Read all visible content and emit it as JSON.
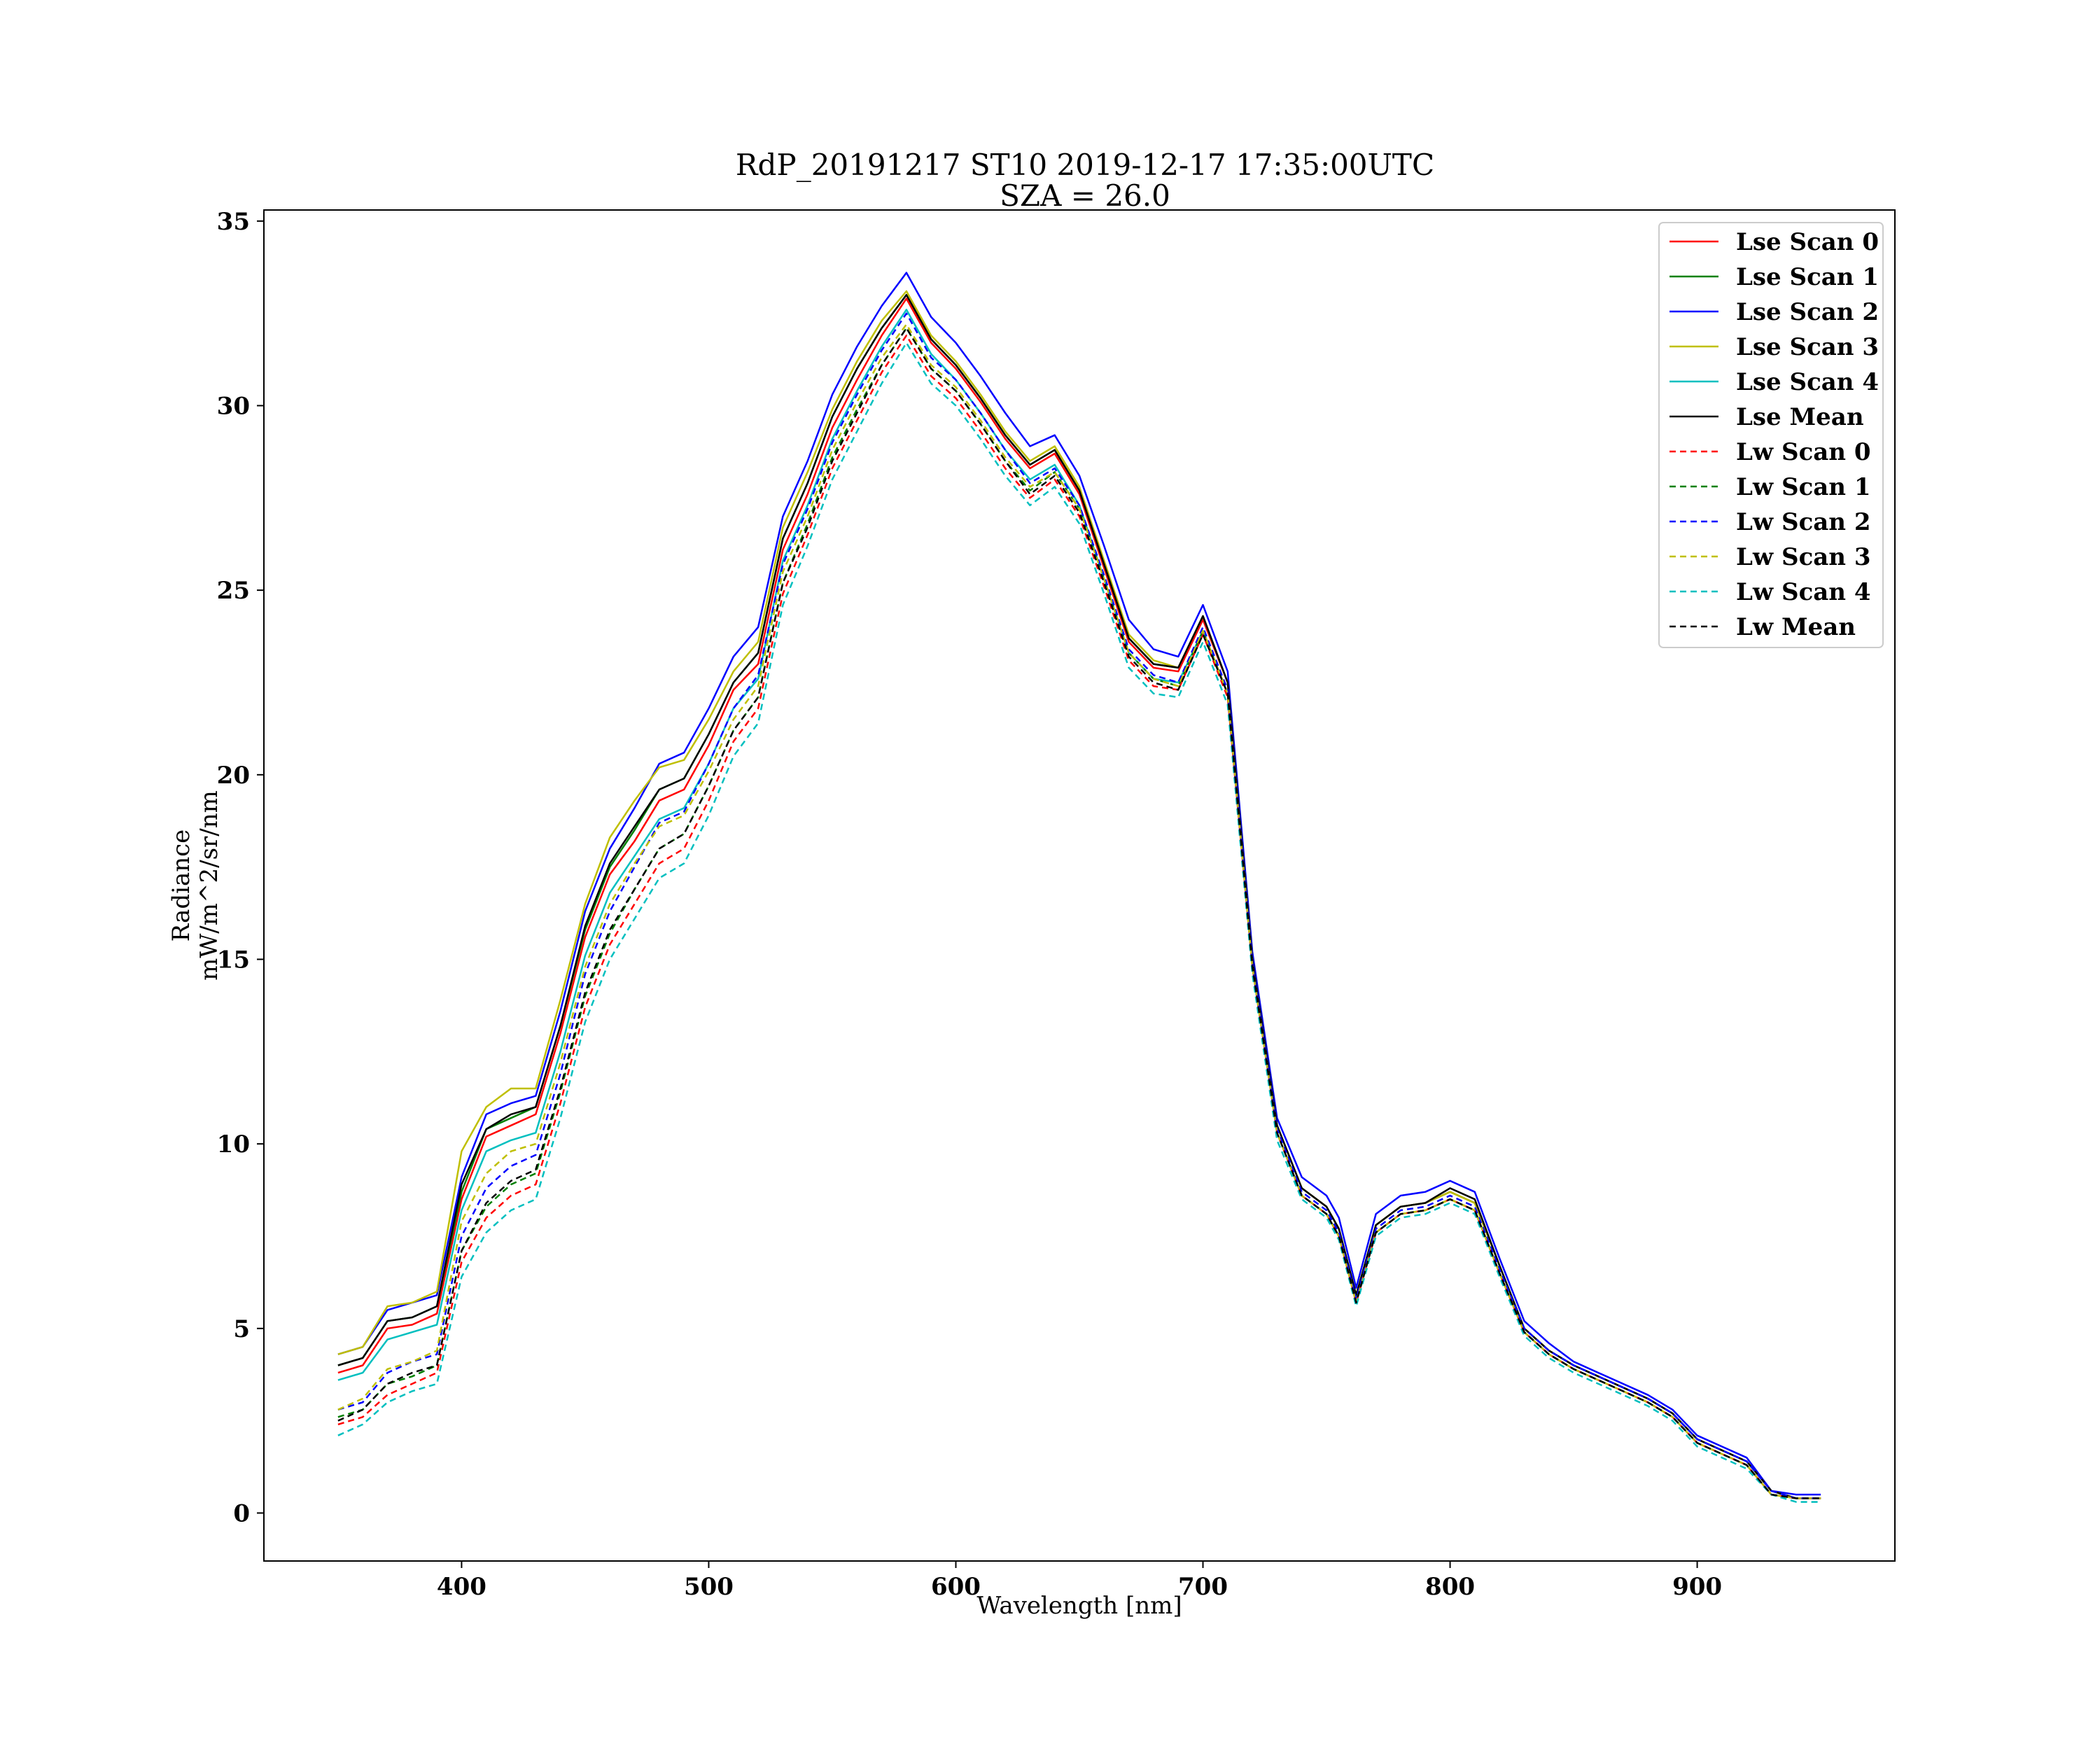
{
  "chart_data": {
    "type": "line",
    "title": "RdP_20191217 ST10 2019-12-17 17:35:00UTC",
    "subtitle": "SZA = 26.0",
    "xlabel": "Wavelength [nm]",
    "ylabel_line1": "Radiance",
    "ylabel_line2": "mW/m^2/sr/nm",
    "xlim": [
      320,
      980
    ],
    "ylim": [
      -1.3,
      35.3
    ],
    "xticks": [
      400,
      500,
      600,
      700,
      800,
      900
    ],
    "yticks": [
      0,
      5,
      10,
      15,
      20,
      25,
      30,
      35
    ],
    "grid": false,
    "legend_position": "top-right",
    "x": [
      350,
      360,
      370,
      380,
      390,
      400,
      410,
      420,
      430,
      440,
      450,
      460,
      470,
      480,
      490,
      500,
      510,
      520,
      530,
      540,
      550,
      560,
      570,
      580,
      590,
      600,
      610,
      620,
      630,
      640,
      650,
      660,
      670,
      680,
      690,
      700,
      710,
      720,
      730,
      740,
      750,
      755,
      762,
      770,
      780,
      790,
      800,
      810,
      820,
      830,
      840,
      850,
      860,
      870,
      880,
      890,
      900,
      910,
      920,
      930,
      940,
      950
    ],
    "series": [
      {
        "name": "Lse Scan 0",
        "color": "#ff0000",
        "dash": false,
        "values": [
          3.8,
          4.0,
          5.0,
          5.1,
          5.4,
          8.5,
          10.2,
          10.5,
          10.8,
          13.0,
          15.6,
          17.3,
          18.2,
          19.3,
          19.6,
          20.8,
          22.3,
          23.0,
          26.1,
          27.6,
          29.4,
          30.7,
          31.9,
          32.9,
          31.7,
          31.0,
          30.1,
          29.1,
          28.3,
          28.7,
          27.6,
          25.6,
          23.6,
          22.9,
          22.8,
          24.2,
          22.5,
          15.0,
          10.5,
          8.8,
          8.3,
          7.7,
          5.9,
          7.8,
          8.3,
          8.4,
          8.7,
          8.4,
          6.7,
          5.0,
          4.4,
          4.0,
          3.7,
          3.4,
          3.1,
          2.7,
          2.0,
          1.7,
          1.4,
          0.6,
          0.4,
          0.4
        ]
      },
      {
        "name": "Lse Scan 1",
        "color": "#008000",
        "dash": false,
        "values": [
          4.0,
          4.2,
          5.2,
          5.3,
          5.6,
          8.7,
          10.4,
          10.7,
          11.0,
          13.2,
          15.8,
          17.5,
          18.5,
          19.6,
          19.9,
          21.1,
          22.5,
          23.3,
          26.4,
          27.9,
          29.7,
          31.0,
          32.1,
          33.0,
          31.8,
          31.1,
          30.2,
          29.2,
          28.4,
          28.8,
          27.7,
          25.7,
          23.7,
          23.0,
          22.9,
          24.3,
          22.5,
          15.0,
          10.5,
          8.8,
          8.3,
          7.7,
          5.9,
          7.8,
          8.3,
          8.4,
          8.7,
          8.4,
          6.7,
          5.0,
          4.4,
          4.0,
          3.7,
          3.4,
          3.1,
          2.7,
          2.0,
          1.7,
          1.4,
          0.6,
          0.4,
          0.4
        ]
      },
      {
        "name": "Lse Scan 2",
        "color": "#0000ff",
        "dash": false,
        "values": [
          4.3,
          4.5,
          5.5,
          5.7,
          5.9,
          9.1,
          10.8,
          11.1,
          11.3,
          13.6,
          16.3,
          18.0,
          19.1,
          20.3,
          20.6,
          21.8,
          23.2,
          24.0,
          27.0,
          28.5,
          30.3,
          31.6,
          32.7,
          33.6,
          32.4,
          31.7,
          30.8,
          29.8,
          28.9,
          29.2,
          28.1,
          26.2,
          24.2,
          23.4,
          23.2,
          24.6,
          22.8,
          15.2,
          10.7,
          9.1,
          8.6,
          8.0,
          6.1,
          8.1,
          8.6,
          8.7,
          9.0,
          8.7,
          6.9,
          5.2,
          4.6,
          4.1,
          3.8,
          3.5,
          3.2,
          2.8,
          2.1,
          1.8,
          1.5,
          0.6,
          0.5,
          0.5
        ]
      },
      {
        "name": "Lse Scan 3",
        "color": "#bfbf00",
        "dash": false,
        "values": [
          4.3,
          4.5,
          5.6,
          5.7,
          6.0,
          9.8,
          11.0,
          11.5,
          11.5,
          13.9,
          16.5,
          18.3,
          19.3,
          20.2,
          20.4,
          21.5,
          22.8,
          23.6,
          26.7,
          28.2,
          29.9,
          31.2,
          32.3,
          33.1,
          31.9,
          31.2,
          30.3,
          29.3,
          28.5,
          28.9,
          27.8,
          25.8,
          23.8,
          23.1,
          22.9,
          24.3,
          22.5,
          15.0,
          10.5,
          8.8,
          8.3,
          7.7,
          5.9,
          7.8,
          8.3,
          8.4,
          8.7,
          8.4,
          6.7,
          5.0,
          4.4,
          4.0,
          3.7,
          3.4,
          3.1,
          2.7,
          2.0,
          1.7,
          1.4,
          0.6,
          0.4,
          0.4
        ]
      },
      {
        "name": "Lse Scan 4",
        "color": "#00bfbf",
        "dash": false,
        "values": [
          3.6,
          3.8,
          4.7,
          4.9,
          5.1,
          8.2,
          9.8,
          10.1,
          10.3,
          12.5,
          15.1,
          16.8,
          17.8,
          18.8,
          19.1,
          20.3,
          21.8,
          22.6,
          25.8,
          27.3,
          29.1,
          30.4,
          31.6,
          32.6,
          31.4,
          30.7,
          29.8,
          28.8,
          28.0,
          28.4,
          27.3,
          25.3,
          23.3,
          22.6,
          22.5,
          23.9,
          22.2,
          14.8,
          10.3,
          8.6,
          8.1,
          7.5,
          5.8,
          7.6,
          8.1,
          8.2,
          8.5,
          8.2,
          6.5,
          4.9,
          4.3,
          3.9,
          3.6,
          3.3,
          3.0,
          2.6,
          1.9,
          1.6,
          1.3,
          0.5,
          0.4,
          0.4
        ]
      },
      {
        "name": "Lse Mean",
        "color": "#000000",
        "dash": false,
        "values": [
          4.0,
          4.2,
          5.2,
          5.3,
          5.6,
          8.9,
          10.4,
          10.8,
          11.0,
          13.2,
          15.9,
          17.6,
          18.6,
          19.6,
          19.9,
          21.1,
          22.5,
          23.3,
          26.4,
          27.9,
          29.7,
          31.0,
          32.1,
          33.0,
          31.8,
          31.1,
          30.2,
          29.2,
          28.4,
          28.8,
          27.7,
          25.7,
          23.7,
          23.0,
          22.9,
          24.3,
          22.5,
          15.0,
          10.5,
          8.8,
          8.3,
          7.7,
          5.9,
          7.8,
          8.3,
          8.4,
          8.8,
          8.5,
          6.7,
          5.0,
          4.4,
          4.0,
          3.7,
          3.4,
          3.1,
          2.7,
          2.0,
          1.7,
          1.4,
          0.6,
          0.4,
          0.4
        ]
      },
      {
        "name": "Lw Scan 0",
        "color": "#ff0000",
        "dash": true,
        "values": [
          2.4,
          2.6,
          3.2,
          3.5,
          3.8,
          6.8,
          8.0,
          8.6,
          8.9,
          11.1,
          13.7,
          15.4,
          16.5,
          17.6,
          18.0,
          19.3,
          20.9,
          21.8,
          24.9,
          26.5,
          28.3,
          29.6,
          30.9,
          31.9,
          30.8,
          30.2,
          29.3,
          28.3,
          27.5,
          28.0,
          27.0,
          25.1,
          23.1,
          22.4,
          22.3,
          23.8,
          22.1,
          14.8,
          10.3,
          8.6,
          8.1,
          7.5,
          5.7,
          7.6,
          8.1,
          8.2,
          8.5,
          8.2,
          6.5,
          4.9,
          4.3,
          3.9,
          3.6,
          3.3,
          3.0,
          2.6,
          1.9,
          1.6,
          1.3,
          0.5,
          0.4,
          0.4
        ]
      },
      {
        "name": "Lw Scan 1",
        "color": "#008000",
        "dash": true,
        "values": [
          2.6,
          2.8,
          3.5,
          3.7,
          4.0,
          7.1,
          8.3,
          8.9,
          9.2,
          11.4,
          14.0,
          15.7,
          16.9,
          18.0,
          18.4,
          19.7,
          21.2,
          22.1,
          25.2,
          26.8,
          28.6,
          29.9,
          31.1,
          32.1,
          31.0,
          30.4,
          29.5,
          28.5,
          27.7,
          28.2,
          27.2,
          25.3,
          23.3,
          22.6,
          22.4,
          23.9,
          22.2,
          14.8,
          10.3,
          8.6,
          8.1,
          7.5,
          5.7,
          7.6,
          8.1,
          8.2,
          8.5,
          8.2,
          6.5,
          4.9,
          4.3,
          3.9,
          3.6,
          3.3,
          3.0,
          2.6,
          1.9,
          1.6,
          1.3,
          0.5,
          0.4,
          0.4
        ]
      },
      {
        "name": "Lw Scan 2",
        "color": "#0000ff",
        "dash": true,
        "values": [
          2.8,
          3.0,
          3.8,
          4.1,
          4.3,
          7.5,
          8.8,
          9.4,
          9.7,
          11.9,
          14.6,
          16.3,
          17.5,
          18.7,
          19.0,
          20.3,
          21.8,
          22.7,
          25.7,
          27.2,
          29.0,
          30.3,
          31.5,
          32.5,
          31.3,
          30.7,
          29.8,
          28.8,
          27.9,
          28.3,
          27.3,
          25.4,
          23.4,
          22.7,
          22.5,
          24.0,
          22.3,
          14.9,
          10.4,
          8.7,
          8.2,
          7.6,
          5.8,
          7.7,
          8.2,
          8.3,
          8.6,
          8.3,
          6.6,
          5.0,
          4.4,
          4.0,
          3.7,
          3.4,
          3.1,
          2.7,
          2.0,
          1.7,
          1.4,
          0.6,
          0.4,
          0.4
        ]
      },
      {
        "name": "Lw Scan 3",
        "color": "#bfbf00",
        "dash": true,
        "values": [
          2.8,
          3.1,
          3.9,
          4.1,
          4.4,
          7.9,
          9.2,
          9.8,
          10.0,
          12.2,
          14.8,
          16.5,
          17.6,
          18.6,
          18.9,
          20.1,
          21.5,
          22.4,
          25.5,
          27.0,
          28.8,
          30.1,
          31.3,
          32.2,
          31.1,
          30.5,
          29.6,
          28.6,
          27.8,
          28.2,
          27.2,
          25.3,
          23.3,
          22.6,
          22.4,
          23.9,
          22.2,
          14.8,
          10.3,
          8.6,
          8.1,
          7.5,
          5.7,
          7.6,
          8.1,
          8.2,
          8.5,
          8.2,
          6.5,
          4.9,
          4.3,
          3.9,
          3.6,
          3.3,
          3.0,
          2.6,
          1.9,
          1.6,
          1.3,
          0.5,
          0.4,
          0.4
        ]
      },
      {
        "name": "Lw Scan 4",
        "color": "#00bfbf",
        "dash": true,
        "values": [
          2.1,
          2.4,
          3.0,
          3.3,
          3.5,
          6.4,
          7.6,
          8.2,
          8.5,
          10.7,
          13.3,
          15.0,
          16.1,
          17.2,
          17.6,
          18.9,
          20.5,
          21.4,
          24.6,
          26.2,
          28.0,
          29.3,
          30.6,
          31.7,
          30.6,
          30.0,
          29.1,
          28.1,
          27.3,
          27.8,
          26.8,
          24.9,
          22.9,
          22.2,
          22.1,
          23.6,
          21.9,
          14.6,
          10.1,
          8.5,
          8.0,
          7.4,
          5.6,
          7.5,
          8.0,
          8.1,
          8.4,
          8.1,
          6.4,
          4.8,
          4.2,
          3.8,
          3.5,
          3.2,
          2.9,
          2.5,
          1.8,
          1.5,
          1.2,
          0.5,
          0.3,
          0.3
        ]
      },
      {
        "name": "Lw Mean",
        "color": "#000000",
        "dash": true,
        "values": [
          2.5,
          2.8,
          3.5,
          3.8,
          4.0,
          7.1,
          8.4,
          9.0,
          9.3,
          11.5,
          14.1,
          15.8,
          16.9,
          18.0,
          18.4,
          19.7,
          21.2,
          22.1,
          25.2,
          26.7,
          28.5,
          29.8,
          31.1,
          32.1,
          31.0,
          30.4,
          29.5,
          28.5,
          27.6,
          28.1,
          27.1,
          25.2,
          23.2,
          22.5,
          22.3,
          23.8,
          22.2,
          14.8,
          10.3,
          8.6,
          8.1,
          7.5,
          5.7,
          7.6,
          8.1,
          8.2,
          8.5,
          8.2,
          6.5,
          4.9,
          4.3,
          3.9,
          3.6,
          3.3,
          3.0,
          2.6,
          1.9,
          1.6,
          1.3,
          0.5,
          0.4,
          0.4
        ]
      }
    ]
  }
}
